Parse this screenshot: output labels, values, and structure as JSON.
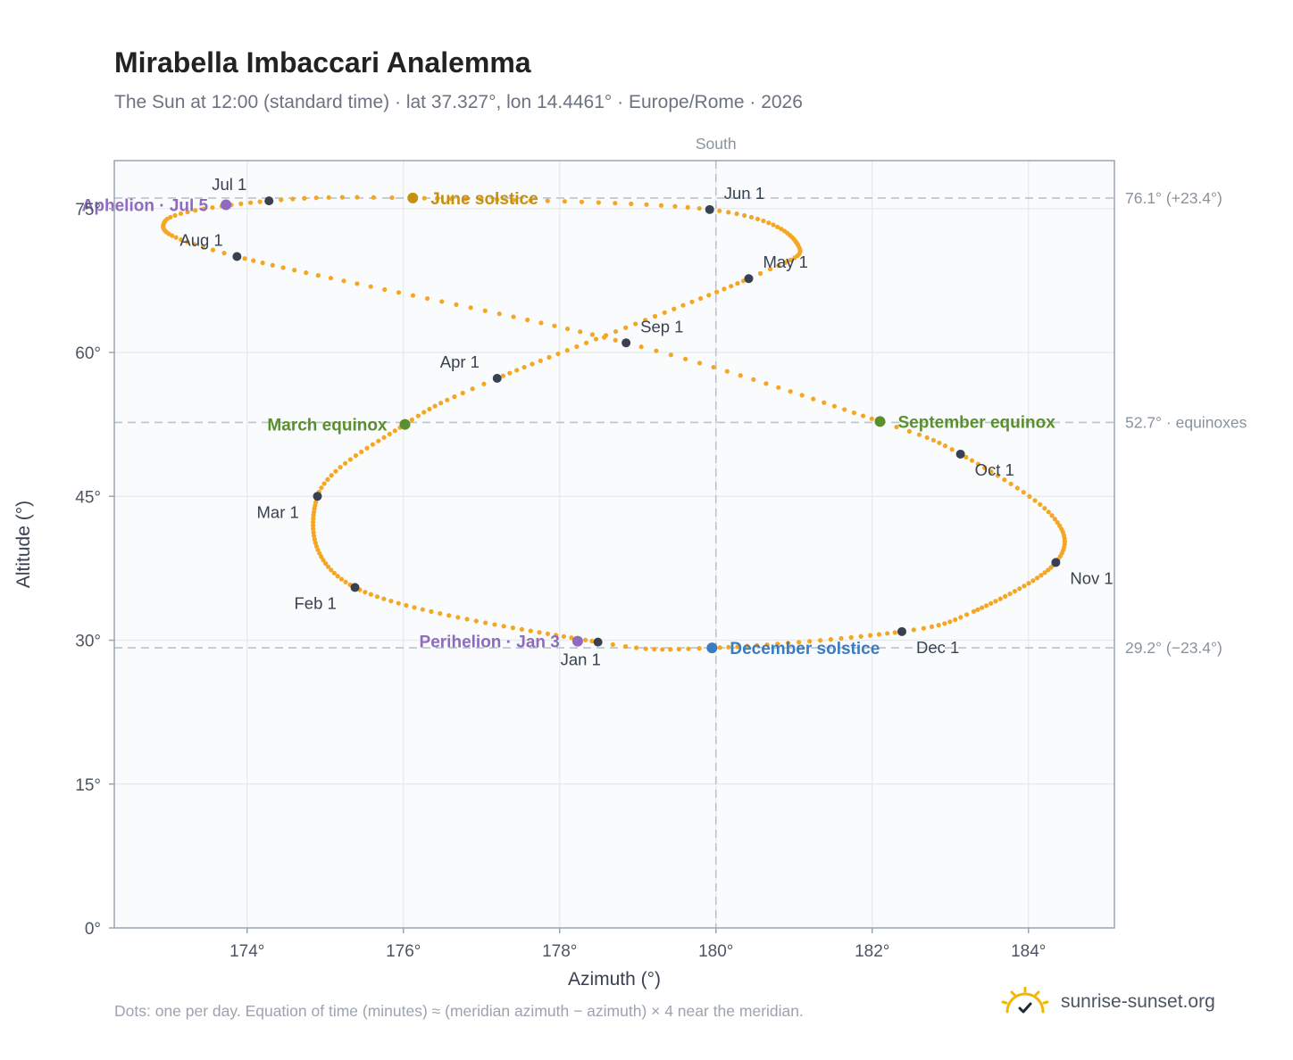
{
  "page": {
    "title": "Mirabella Imbaccari Analemma",
    "subtitle": "The Sun at 12:00 (standard time) · lat 37.327°, lon 14.4461° · Europe/Rome · 2026",
    "footnote": "Dots: one per day. Equation of time (minutes) ≈ (meridian azimuth − azimuth) × 4 near the meridian.",
    "brand": "sunrise-sunset.org"
  },
  "colors": {
    "path": "#f5a623",
    "month_marker": "#374151",
    "solstice_june": "#c8900f",
    "solstice_december": "#3b7bbf",
    "equinox": "#5a8f2e",
    "apsis": "#8e6bbf",
    "reference_line": "#b8c4cc",
    "grid": "#e5e9ee",
    "plot_bg": "#f9fbfd",
    "frame": "#9aa5b1"
  },
  "chart_data": {
    "type": "scatter",
    "xlabel": "Azimuth (°)",
    "ylabel": "Altitude (°)",
    "xlim": [
      172.3,
      185.1
    ],
    "ylim": [
      0,
      80
    ],
    "x_ticks": [
      174,
      176,
      178,
      180,
      182,
      184
    ],
    "x_tick_labels": [
      "174°",
      "176°",
      "178°",
      "180°",
      "182°",
      "184°"
    ],
    "y_ticks": [
      0,
      15,
      30,
      45,
      60,
      75
    ],
    "y_tick_labels": [
      "0°",
      "15°",
      "30°",
      "45°",
      "60°",
      "75°"
    ],
    "grid": true,
    "meridian": {
      "azimuth": 180,
      "label": "South"
    },
    "reference_lines": [
      {
        "altitude": 76.1,
        "label": "76.1° (+23.4°)"
      },
      {
        "altitude": 52.7,
        "label": "52.7° · equinoxes"
      },
      {
        "altitude": 29.2,
        "label": "29.2° (−23.4°)"
      }
    ],
    "series": [
      {
        "kind": "daily_path",
        "anchors": [
          {
            "day": 1,
            "az": 178.49,
            "alt": 29.8
          },
          {
            "day": 32,
            "az": 175.38,
            "alt": 35.5
          },
          {
            "day": 60,
            "az": 174.9,
            "alt": 45.0
          },
          {
            "day": 79,
            "az": 176.02,
            "alt": 52.5
          },
          {
            "day": 91,
            "az": 177.2,
            "alt": 57.3
          },
          {
            "day": 121,
            "az": 180.42,
            "alt": 67.7
          },
          {
            "day": 133,
            "az": 181.05,
            "alt": 71.2
          },
          {
            "day": 152,
            "az": 179.92,
            "alt": 74.9
          },
          {
            "day": 172,
            "az": 176.12,
            "alt": 76.1
          },
          {
            "day": 182,
            "az": 174.28,
            "alt": 75.8
          },
          {
            "day": 196,
            "az": 172.95,
            "alt": 73.7
          },
          {
            "day": 213,
            "az": 173.87,
            "alt": 70.0
          },
          {
            "day": 244,
            "az": 178.85,
            "alt": 61.0
          },
          {
            "day": 265,
            "az": 182.1,
            "alt": 52.8
          },
          {
            "day": 274,
            "az": 183.13,
            "alt": 49.4
          },
          {
            "day": 290,
            "az": 184.3,
            "alt": 43.0
          },
          {
            "day": 305,
            "az": 184.35,
            "alt": 38.1
          },
          {
            "day": 325,
            "az": 183.3,
            "alt": 33.0
          },
          {
            "day": 335,
            "az": 182.38,
            "alt": 30.9
          },
          {
            "day": 355,
            "az": 179.95,
            "alt": 29.2
          },
          {
            "day": 366,
            "az": 178.49,
            "alt": 29.8
          }
        ]
      }
    ],
    "month_markers": [
      {
        "label": "Jan 1",
        "az": 178.49,
        "alt": 29.8,
        "anchor": "below"
      },
      {
        "label": "Feb 1",
        "az": 175.38,
        "alt": 35.5,
        "anchor": "lower-left"
      },
      {
        "label": "Mar 1",
        "az": 174.9,
        "alt": 45.0,
        "anchor": "lower-left"
      },
      {
        "label": "Apr 1",
        "az": 177.2,
        "alt": 57.3,
        "anchor": "upper-left"
      },
      {
        "label": "May 1",
        "az": 180.42,
        "alt": 67.7,
        "anchor": "upper-right"
      },
      {
        "label": "Jun 1",
        "az": 179.92,
        "alt": 74.9,
        "anchor": "upper-right"
      },
      {
        "label": "Jul 1",
        "az": 174.28,
        "alt": 75.8,
        "anchor": "upper-left"
      },
      {
        "label": "Aug 1",
        "az": 173.87,
        "alt": 70.0,
        "anchor": "upper-left"
      },
      {
        "label": "Sep 1",
        "az": 178.85,
        "alt": 61.0,
        "anchor": "upper-right"
      },
      {
        "label": "Oct 1",
        "az": 183.13,
        "alt": 49.4,
        "anchor": "lower-right"
      },
      {
        "label": "Nov 1",
        "az": 184.35,
        "alt": 38.1,
        "anchor": "lower-right"
      },
      {
        "label": "Dec 1",
        "az": 182.38,
        "alt": 30.9,
        "anchor": "lower-right"
      }
    ],
    "events": [
      {
        "label": "June solstice",
        "az": 176.12,
        "alt": 76.1,
        "color_key": "solstice_june",
        "side": "right"
      },
      {
        "label": "December solstice",
        "az": 179.95,
        "alt": 29.2,
        "color_key": "solstice_december",
        "side": "right"
      },
      {
        "label": "March equinox",
        "az": 176.02,
        "alt": 52.5,
        "color_key": "equinox",
        "side": "left"
      },
      {
        "label": "September equinox",
        "az": 182.1,
        "alt": 52.8,
        "color_key": "equinox",
        "side": "right"
      },
      {
        "label": "Perihelion · Jan 3",
        "az": 178.23,
        "alt": 29.9,
        "color_key": "apsis",
        "side": "left"
      },
      {
        "label": "Aphelion · Jul 5",
        "az": 173.73,
        "alt": 75.4,
        "color_key": "apsis",
        "side": "left"
      }
    ]
  }
}
